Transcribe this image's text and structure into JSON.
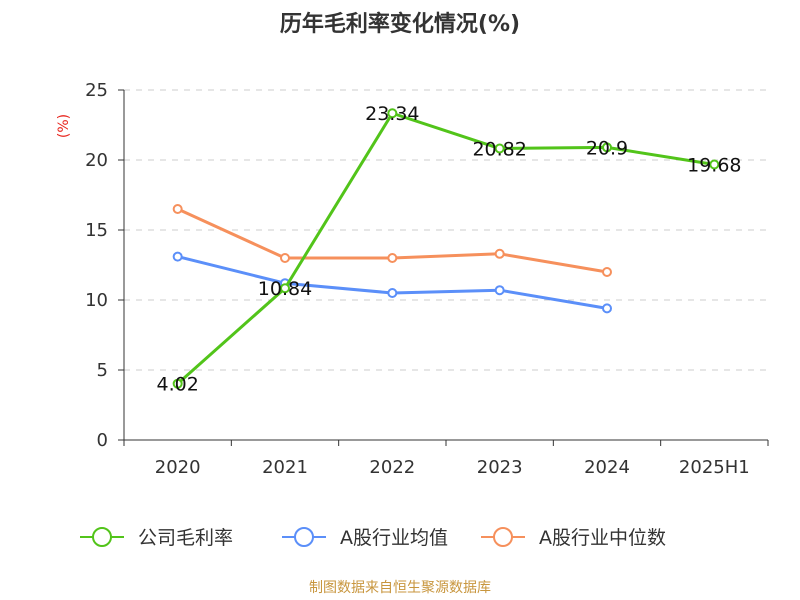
{
  "chart_data": {
    "type": "line",
    "title": "历年毛利率变化情况(%)",
    "ylabel": "(%)",
    "ylim": [
      0,
      25
    ],
    "yticks": [
      0,
      5,
      10,
      15,
      20,
      25
    ],
    "categories": [
      "2020",
      "2021",
      "2022",
      "2023",
      "2024",
      "2025H1"
    ],
    "grid": true,
    "legend_position": "bottom",
    "series": [
      {
        "name": "公司毛利率",
        "color": "#52c41a",
        "values": [
          4.02,
          10.84,
          23.34,
          20.82,
          20.9,
          19.68
        ],
        "labels": [
          "4.02",
          "10.84",
          "23.34",
          "20.82",
          "20.9",
          "19.68"
        ]
      },
      {
        "name": "A股行业均值",
        "color": "#5b8ff9",
        "values": [
          13.1,
          11.2,
          10.5,
          10.7,
          9.4,
          null
        ]
      },
      {
        "name": "A股行业中位数",
        "color": "#f6905c",
        "values": [
          16.5,
          13.0,
          13.0,
          13.3,
          12.0,
          null
        ]
      }
    ]
  },
  "source": "制图数据来自恒生聚源数据库"
}
